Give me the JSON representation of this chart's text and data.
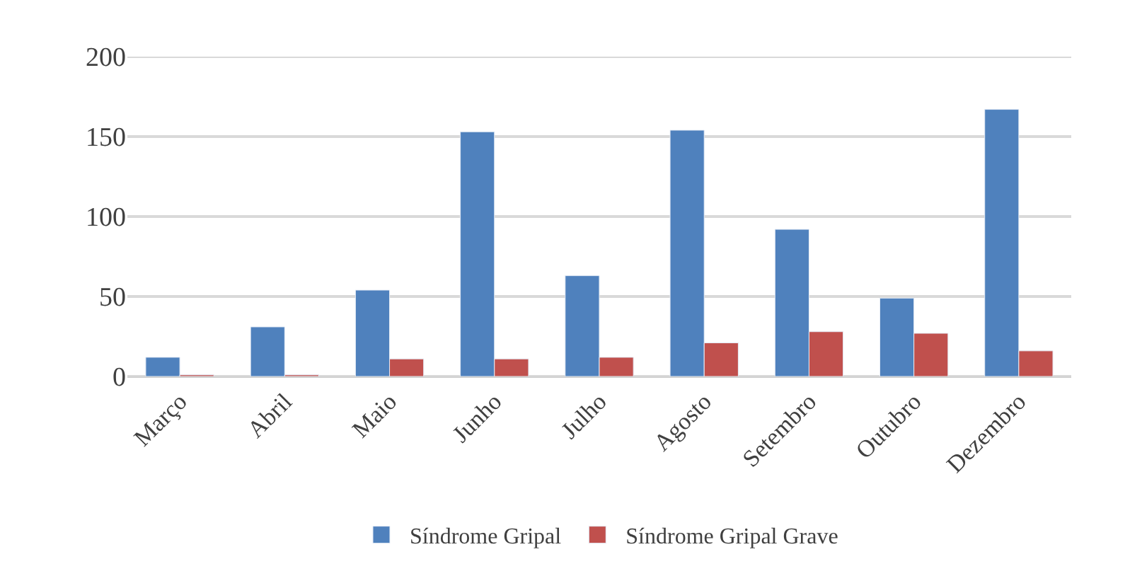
{
  "chart_data": {
    "type": "bar",
    "categories": [
      "Março",
      "Abril",
      "Maio",
      "Junho",
      "Julho",
      "Agosto",
      "Setembro",
      "Outubro",
      "Dezembro"
    ],
    "series": [
      {
        "name": "Síndrome Gripal",
        "color": "#4f81bd",
        "values": [
          12,
          31,
          54,
          153,
          63,
          154,
          92,
          49,
          167
        ]
      },
      {
        "name": "Síndrome Gripal Grave",
        "color": "#c0504d",
        "values": [
          1,
          1,
          11,
          11,
          12,
          21,
          28,
          27,
          16
        ]
      }
    ],
    "ylim": [
      0,
      200
    ],
    "yticks": [
      0,
      50,
      100,
      150,
      200
    ],
    "grid": "y",
    "legend": "bottom"
  }
}
